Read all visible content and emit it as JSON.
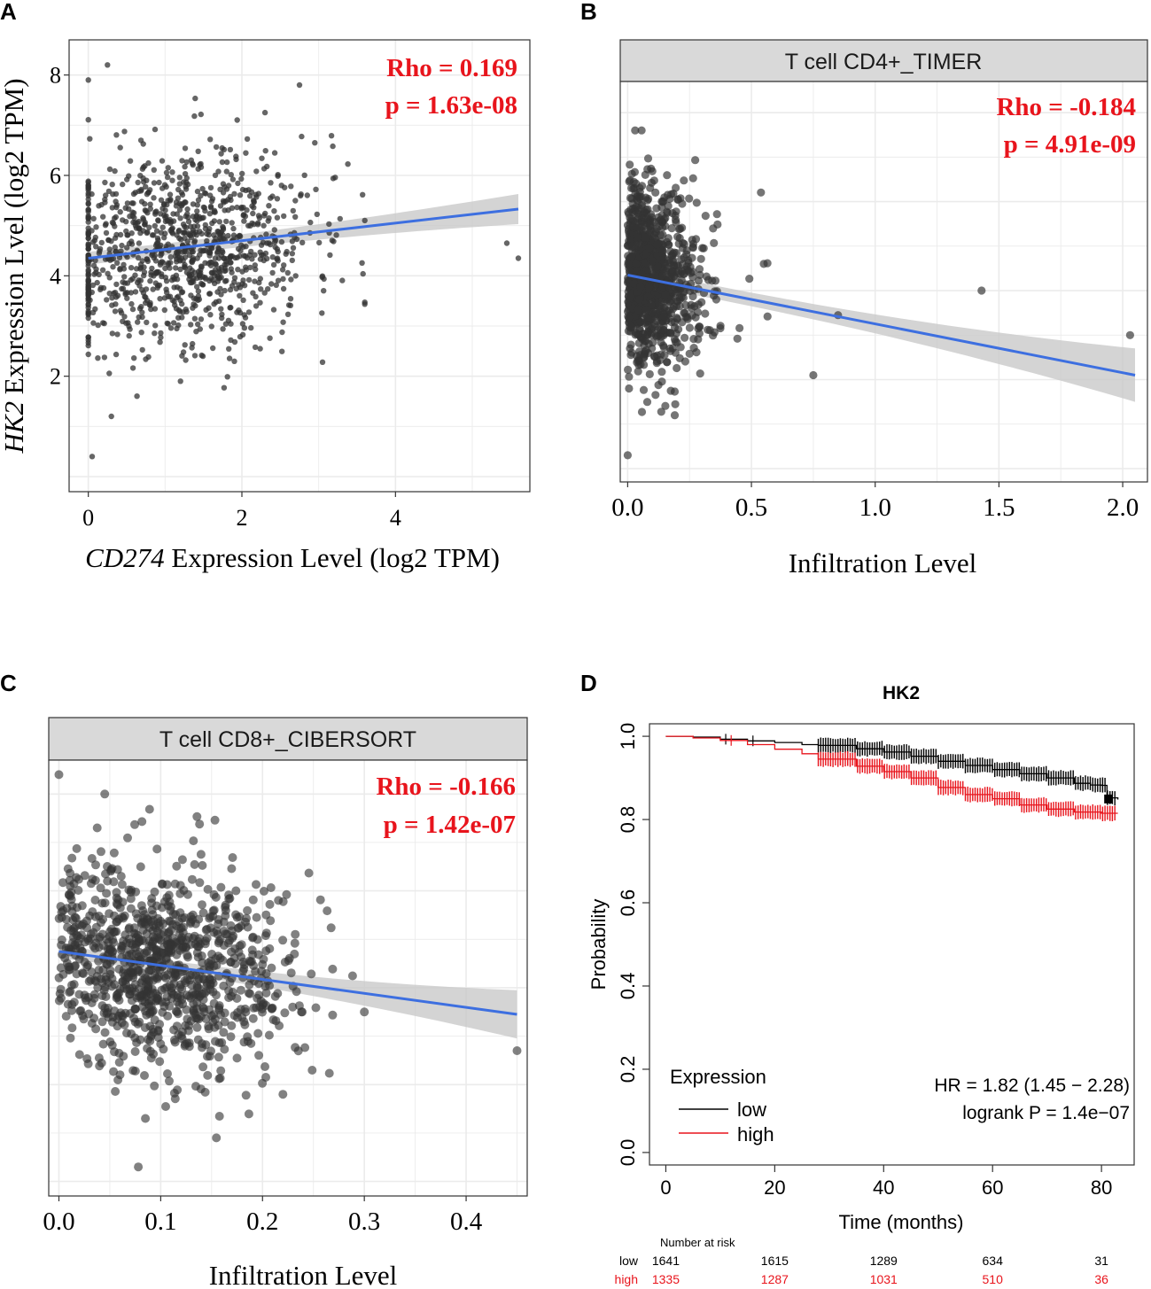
{
  "chart_data": [
    {
      "panel": "A",
      "type": "scatter",
      "strip_title": "",
      "xlabel_italic": "CD274",
      "xlabel_rest": " Expression Level (log2 TPM)",
      "ylabel_italic": "HK2",
      "ylabel_rest": " Expression Lvel (log2 TPM)",
      "xlim": [
        -0.25,
        5.75
      ],
      "ylim": [
        -0.3,
        8.7
      ],
      "xticks": [
        0,
        2,
        4
      ],
      "xtick_labels": [
        "0",
        "2",
        "4"
      ],
      "yticks": [
        2,
        4,
        6,
        8
      ],
      "ytick_labels": [
        "2",
        "4",
        "6",
        "8"
      ],
      "grid": true,
      "rho": "Rho = 0.169",
      "p": "p = 1.63e-08",
      "fit": {
        "x0": 0.0,
        "y0": 4.35,
        "x1": 5.6,
        "y1": 5.33,
        "band_start": 0.12,
        "band_end": 0.3
      },
      "n_points": 1100,
      "distribution": {
        "x_mean": 1.2,
        "x_sd": 0.85,
        "x_min": 0.0,
        "x_max": 5.6,
        "y_mean": 4.6,
        "y_sd": 0.95,
        "y_min": 0.3,
        "y_max": 8.3
      },
      "highlight_points": [
        [
          0.25,
          8.2
        ],
        [
          0.05,
          0.4
        ],
        [
          0.3,
          1.2
        ],
        [
          5.6,
          4.35
        ],
        [
          5.45,
          4.65
        ],
        [
          3.05,
          2.28
        ],
        [
          2.95,
          6.65
        ],
        [
          2.75,
          7.8
        ],
        [
          1.2,
          1.9
        ]
      ]
    },
    {
      "panel": "B",
      "type": "scatter",
      "strip_title": "T cell CD4+_TIMER",
      "xlabel_italic": "",
      "xlabel_rest": "Infiltration Level",
      "ylabel_italic": "",
      "ylabel_rest": "",
      "xlim": [
        -0.03,
        2.1
      ],
      "ylim": [
        -0.3,
        8.7
      ],
      "xticks": [
        0.0,
        0.5,
        1.0,
        1.5,
        2.0
      ],
      "xtick_labels": [
        "0.0",
        "0.5",
        "1.0",
        "1.5",
        "2.0"
      ],
      "yticks": [],
      "ytick_labels": [],
      "grid": true,
      "rho": "Rho = -0.184",
      "p": "p = 4.91e-09",
      "fit": {
        "x0": 0.0,
        "y0": 4.35,
        "x1": 2.05,
        "y1": 2.1,
        "band_start": 0.15,
        "band_end": 0.6
      },
      "n_points": 1100,
      "distribution": {
        "x_mean": 0.08,
        "x_sd": 0.13,
        "x_min": 0.0,
        "x_max": 2.05,
        "y_mean": 4.4,
        "y_sd": 0.95,
        "y_min": 0.3,
        "y_max": 8.0
      },
      "highlight_points": [
        [
          0.03,
          7.6
        ],
        [
          0.0,
          0.3
        ],
        [
          1.43,
          4.0
        ],
        [
          2.03,
          3.0
        ],
        [
          0.75,
          2.1
        ],
        [
          0.19,
          1.2
        ],
        [
          0.85,
          3.45
        ],
        [
          0.55,
          4.6
        ]
      ]
    },
    {
      "panel": "C",
      "type": "scatter",
      "strip_title": "T cell CD8+_CIBERSORT",
      "xlabel_italic": "",
      "xlabel_rest": "Infiltration Level",
      "ylabel_italic": "",
      "ylabel_rest": "",
      "xlim": [
        -0.01,
        0.46
      ],
      "ylim": [
        -0.3,
        8.7
      ],
      "xticks": [
        0.0,
        0.1,
        0.2,
        0.3,
        0.4
      ],
      "xtick_labels": [
        "0.0",
        "0.1",
        "0.2",
        "0.3",
        "0.4"
      ],
      "yticks": [],
      "ytick_labels": [],
      "grid": true,
      "rho": "Rho = -0.166",
      "p": "p = 1.42e-07",
      "fit": {
        "x0": 0.0,
        "y0": 4.75,
        "x1": 0.45,
        "y1": 3.45,
        "band_start": 0.12,
        "band_end": 0.5
      },
      "n_points": 1000,
      "distribution": {
        "x_mean": 0.1,
        "x_sd": 0.065,
        "x_min": 0.0,
        "x_max": 0.45,
        "y_mean": 4.6,
        "y_sd": 1.05,
        "y_min": 0.3,
        "y_max": 8.5
      },
      "highlight_points": [
        [
          0.0,
          8.4
        ],
        [
          0.078,
          0.3
        ],
        [
          0.085,
          1.3
        ],
        [
          0.45,
          2.7
        ],
        [
          0.3,
          3.5
        ],
        [
          0.22,
          1.8
        ],
        [
          0.045,
          8.0
        ]
      ]
    },
    {
      "panel": "D",
      "type": "line",
      "title": "HK2",
      "xlabel": "Time (months)",
      "ylabel": "Probability",
      "xlim": [
        -3,
        86
      ],
      "ylim": [
        -0.03,
        1.03
      ],
      "xticks": [
        0,
        20,
        40,
        60,
        80
      ],
      "xtick_labels": [
        "0",
        "20",
        "40",
        "60",
        "80"
      ],
      "yticks": [
        0.0,
        0.2,
        0.4,
        0.6,
        0.8,
        1.0
      ],
      "ytick_labels": [
        "0.0",
        "0.2",
        "0.4",
        "0.6",
        "0.8",
        "1.0"
      ],
      "series": [
        {
          "name": "low",
          "color": "#000000",
          "x": [
            0,
            5,
            10,
            15,
            20,
            25,
            28,
            35,
            40,
            45,
            50,
            55,
            60,
            65,
            70,
            75,
            78,
            80,
            81,
            83
          ],
          "y": [
            1.0,
            0.998,
            0.993,
            0.989,
            0.985,
            0.98,
            0.978,
            0.97,
            0.962,
            0.952,
            0.94,
            0.93,
            0.92,
            0.91,
            0.9,
            0.887,
            0.883,
            0.882,
            0.852,
            0.848
          ]
        },
        {
          "name": "high",
          "color": "#e8141c",
          "x": [
            0,
            5,
            10,
            15,
            20,
            25,
            28,
            35,
            40,
            45,
            50,
            55,
            60,
            65,
            70,
            75,
            80,
            83
          ],
          "y": [
            1.0,
            0.996,
            0.99,
            0.98,
            0.969,
            0.958,
            0.945,
            0.928,
            0.915,
            0.9,
            0.877,
            0.86,
            0.85,
            0.835,
            0.825,
            0.818,
            0.815,
            0.815
          ]
        }
      ],
      "censor_marks": {
        "low": [
          11,
          16
        ],
        "high": [
          12
        ]
      },
      "legend_title": "Expression",
      "legend_position": "bottom-left",
      "hr_text": "HR = 1.82 (1.45 − 2.28)",
      "logrank_text": "logrank P = 1.4e−07",
      "risk_table": {
        "header": "Number at risk",
        "times": [
          0,
          20,
          40,
          60,
          80
        ],
        "rows": [
          {
            "label": "low",
            "color": "#000000",
            "values": [
              "1641",
              "1615",
              "1289",
              "634",
              "31"
            ]
          },
          {
            "label": "high",
            "color": "#e8141c",
            "values": [
              "1335",
              "1287",
              "1031",
              "510",
              "36"
            ]
          }
        ]
      }
    }
  ],
  "panel_labels": [
    "A",
    "B",
    "C",
    "D"
  ],
  "colors": {
    "fit_line": "#3d6fe0",
    "band": "#c9c9c9",
    "points": "#333333",
    "stat_text": "#e8141c",
    "grid": "#ebebeb",
    "strip": "#d9d9d9"
  }
}
